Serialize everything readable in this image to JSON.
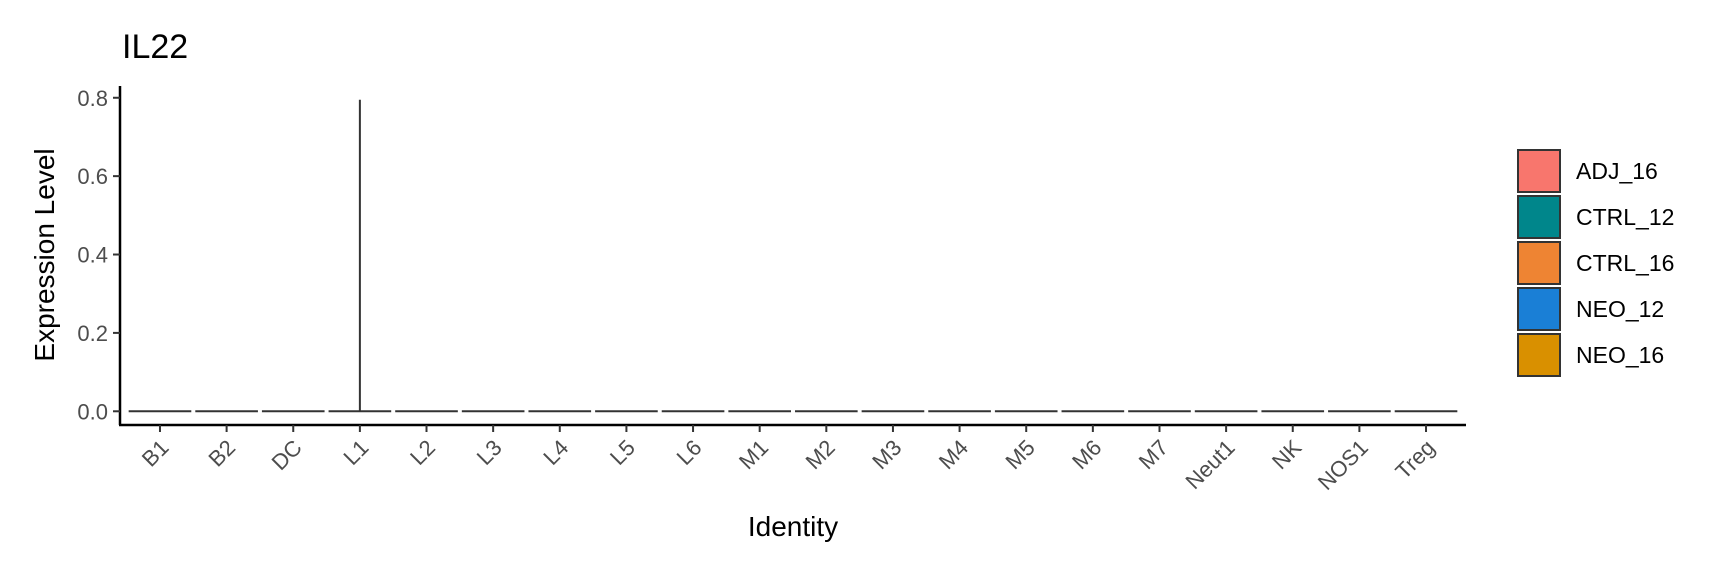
{
  "chart_data": {
    "type": "violin",
    "title": "IL22",
    "xlabel": "Identity",
    "ylabel": "Expression Level",
    "ylim": [
      -0.035,
      0.83
    ],
    "yticks": [
      "0.0",
      "0.2",
      "0.4",
      "0.6",
      "0.8"
    ],
    "ytick_values": [
      0.0,
      0.2,
      0.4,
      0.6,
      0.8
    ],
    "categories": [
      "B1",
      "B2",
      "DC",
      "L1",
      "L2",
      "L3",
      "L4",
      "L5",
      "L6",
      "M1",
      "M2",
      "M3",
      "M4",
      "M5",
      "M6",
      "M7",
      "Neut1",
      "NK",
      "NOS1",
      "Treg"
    ],
    "max_values": [
      0,
      0,
      0,
      0.795,
      0,
      0,
      0,
      0,
      0,
      0,
      0,
      0,
      0,
      0,
      0,
      0,
      0,
      0,
      0,
      0
    ],
    "legend_position": "right",
    "legend": [
      {
        "name": "ADJ_16",
        "color": "#F8766D"
      },
      {
        "name": "CTRL_12",
        "color": "#00868B"
      },
      {
        "name": "CTRL_16",
        "color": "#EE8433"
      },
      {
        "name": "NEO_12",
        "color": "#1A7FD6"
      },
      {
        "name": "NEO_16",
        "color": "#D99000"
      }
    ],
    "grid": false
  }
}
